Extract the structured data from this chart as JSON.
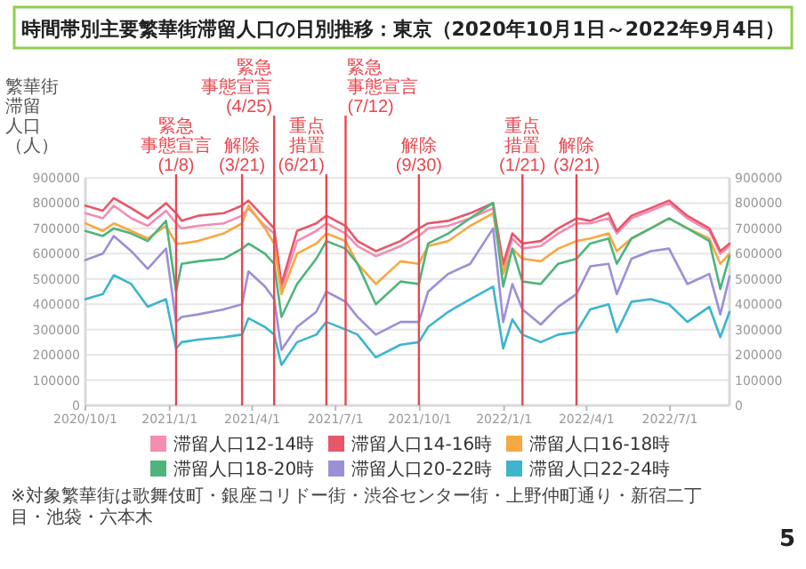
{
  "chart_data": {
    "type": "line",
    "title": "時間帯別主要繁華街滞留人口の日別推移：東京（2020年10月1日～2022年9月4日）",
    "ylabel": "繁華街滞留人口（人）",
    "x": [
      "2020-10-01",
      "2020-10-20",
      "2020-11-01",
      "2020-11-20",
      "2020-12-08",
      "2020-12-28",
      "2021-01-08",
      "2021-01-14",
      "2021-02-01",
      "2021-03-01",
      "2021-03-21",
      "2021-03-28",
      "2021-04-15",
      "2021-04-25",
      "2021-05-03",
      "2021-05-20",
      "2021-06-10",
      "2021-06-21",
      "2021-07-12",
      "2021-07-25",
      "2021-08-14",
      "2021-09-10",
      "2021-09-30",
      "2021-10-10",
      "2021-11-01",
      "2021-11-25",
      "2021-12-20",
      "2021-12-31",
      "2022-01-10",
      "2022-01-21",
      "2022-02-10",
      "2022-03-01",
      "2022-03-21",
      "2022-04-05",
      "2022-04-25",
      "2022-05-04",
      "2022-05-20",
      "2022-06-10",
      "2022-06-30",
      "2022-07-20",
      "2022-08-13",
      "2022-08-25",
      "2022-09-04"
    ],
    "series": [
      {
        "name": "滞留人口12-14時",
        "color": "#f38db2",
        "values": [
          760000,
          740000,
          790000,
          740000,
          710000,
          770000,
          720000,
          700000,
          710000,
          720000,
          750000,
          780000,
          710000,
          680000,
          460000,
          650000,
          690000,
          720000,
          680000,
          630000,
          590000,
          630000,
          670000,
          700000,
          710000,
          740000,
          780000,
          540000,
          660000,
          620000,
          630000,
          680000,
          720000,
          720000,
          740000,
          680000,
          740000,
          770000,
          800000,
          740000,
          690000,
          600000,
          630000
        ]
      },
      {
        "name": "滞留人口14-16時",
        "color": "#e8566a",
        "values": [
          790000,
          770000,
          820000,
          780000,
          740000,
          800000,
          760000,
          730000,
          750000,
          760000,
          790000,
          810000,
          740000,
          700000,
          480000,
          690000,
          720000,
          750000,
          710000,
          650000,
          610000,
          650000,
          700000,
          720000,
          730000,
          760000,
          800000,
          560000,
          680000,
          640000,
          650000,
          700000,
          740000,
          730000,
          760000,
          690000,
          750000,
          780000,
          810000,
          750000,
          700000,
          610000,
          640000
        ]
      },
      {
        "name": "滞留人口16-18時",
        "color": "#f6a843",
        "values": [
          720000,
          690000,
          720000,
          690000,
          660000,
          710000,
          640000,
          640000,
          650000,
          680000,
          720000,
          790000,
          700000,
          640000,
          440000,
          600000,
          640000,
          680000,
          650000,
          560000,
          480000,
          570000,
          560000,
          630000,
          650000,
          710000,
          760000,
          520000,
          620000,
          580000,
          570000,
          620000,
          650000,
          660000,
          680000,
          610000,
          660000,
          700000,
          740000,
          700000,
          660000,
          560000,
          600000
        ]
      },
      {
        "name": "滞留人口18-20時",
        "color": "#4db57b",
        "values": [
          690000,
          670000,
          700000,
          680000,
          650000,
          730000,
          450000,
          560000,
          570000,
          580000,
          620000,
          640000,
          600000,
          560000,
          350000,
          480000,
          580000,
          650000,
          620000,
          560000,
          400000,
          490000,
          480000,
          640000,
          680000,
          740000,
          800000,
          470000,
          620000,
          490000,
          480000,
          560000,
          580000,
          640000,
          660000,
          560000,
          660000,
          700000,
          740000,
          700000,
          650000,
          460000,
          590000
        ]
      },
      {
        "name": "滞留人口20-22時",
        "color": "#9b8fd8",
        "values": [
          575000,
          600000,
          670000,
          610000,
          540000,
          620000,
          330000,
          350000,
          360000,
          380000,
          400000,
          530000,
          470000,
          420000,
          220000,
          310000,
          370000,
          450000,
          410000,
          350000,
          280000,
          330000,
          330000,
          450000,
          520000,
          560000,
          700000,
          330000,
          480000,
          380000,
          320000,
          390000,
          440000,
          550000,
          560000,
          440000,
          580000,
          610000,
          620000,
          480000,
          520000,
          360000,
          510000
        ]
      },
      {
        "name": "滞留人口22-24時",
        "color": "#3cb5cd",
        "values": [
          420000,
          440000,
          515000,
          480000,
          390000,
          420000,
          225000,
          250000,
          260000,
          270000,
          280000,
          345000,
          310000,
          280000,
          160000,
          250000,
          280000,
          330000,
          300000,
          280000,
          190000,
          240000,
          250000,
          310000,
          370000,
          420000,
          470000,
          225000,
          340000,
          280000,
          250000,
          280000,
          290000,
          380000,
          400000,
          290000,
          410000,
          420000,
          400000,
          330000,
          390000,
          270000,
          370000
        ]
      }
    ],
    "xlim": [
      "2020-10-01",
      "2022-09-04"
    ],
    "xticks": [
      {
        "value": "2020-10-01",
        "label": "2020/10/1"
      },
      {
        "value": "2021-01-01",
        "label": "2021/1/1"
      },
      {
        "value": "2021-04-01",
        "label": "2021/4/1"
      },
      {
        "value": "2021-07-01",
        "label": "2021/7/1"
      },
      {
        "value": "2021-10-01",
        "label": "2021/10/1"
      },
      {
        "value": "2022-01-01",
        "label": "2022/1/1"
      },
      {
        "value": "2022-04-01",
        "label": "2022/4/1"
      },
      {
        "value": "2022-07-01",
        "label": "2022/7/1"
      }
    ],
    "ylim": [
      0,
      900000
    ],
    "yticks": [
      0,
      100000,
      200000,
      300000,
      400000,
      500000,
      600000,
      700000,
      800000,
      900000
    ],
    "y2lim": [
      0,
      900000
    ],
    "y2ticks": [
      0,
      100000,
      200000,
      300000,
      400000,
      500000,
      600000,
      700000,
      800000,
      900000
    ],
    "grid": "y",
    "legend": "bottom",
    "ref_lines": [
      {
        "axis": "x",
        "value": "2021-01-08",
        "label": "緊急事態宣言(1/8)",
        "color": "#e8474f"
      },
      {
        "axis": "x",
        "value": "2021-03-21",
        "label": "解除(3/21)",
        "color": "#e8474f"
      },
      {
        "axis": "x",
        "value": "2021-04-25",
        "label": "緊急事態宣言(4/25)",
        "color": "#e8474f"
      },
      {
        "axis": "x",
        "value": "2021-06-21",
        "label": "重点措置(6/21)",
        "color": "#e8474f"
      },
      {
        "axis": "x",
        "value": "2021-07-12",
        "label": "緊急事態宣言(7/12)",
        "color": "#e8474f"
      },
      {
        "axis": "x",
        "value": "2021-09-30",
        "label": "解除(9/30)",
        "color": "#e8474f"
      },
      {
        "axis": "x",
        "value": "2022-01-21",
        "label": "重点措置(1/21)",
        "color": "#e8474f"
      },
      {
        "axis": "x",
        "value": "2022-03-21",
        "label": "解除(3/21)",
        "color": "#e8474f"
      }
    ],
    "annotations": [
      "※対象繁華街は歌舞伎町・銀座コリドー街・渋谷センター街・上野仲町通り・新宿二丁目・池袋・六本木",
      "5"
    ]
  }
}
